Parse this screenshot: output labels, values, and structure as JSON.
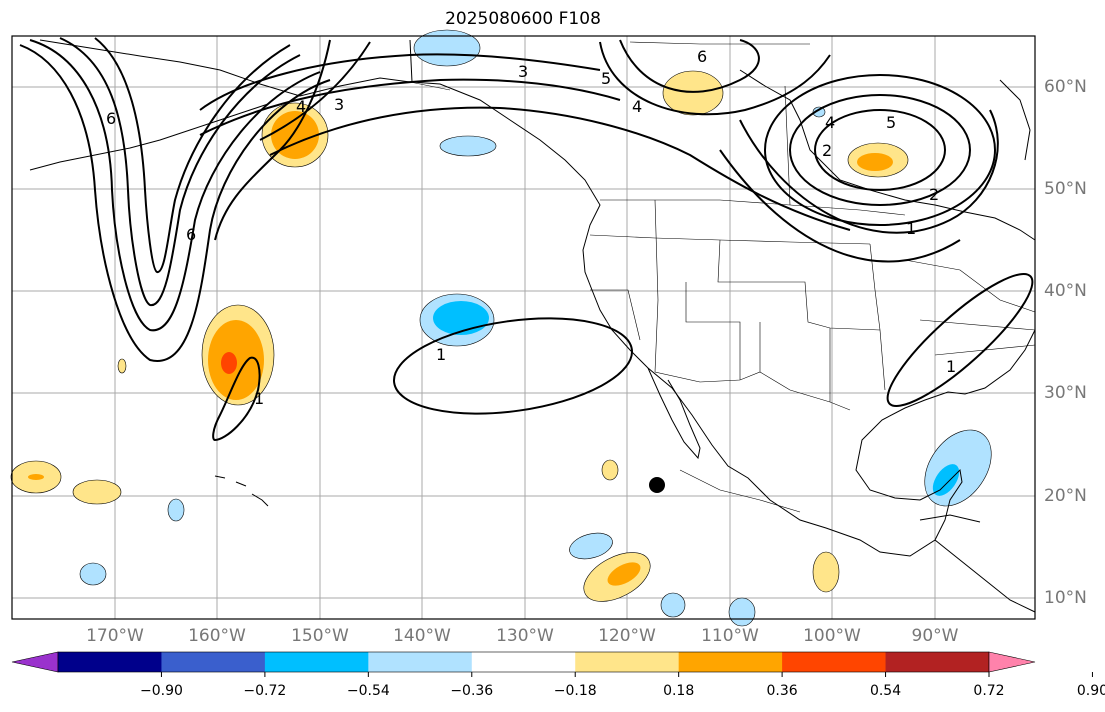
{
  "title": "2025080600 F108",
  "lat_labels": [
    "60°N",
    "50°N",
    "40°N",
    "30°N",
    "20°N",
    "10°N"
  ],
  "lon_labels": [
    "170°W",
    "160°W",
    "150°W",
    "140°W",
    "130°W",
    "120°W",
    "110°W",
    "100°W",
    "90°W"
  ],
  "contour_labels": [
    "6",
    "6",
    "4",
    "3",
    "3",
    "5",
    "6",
    "4",
    "4",
    "5",
    "2",
    "2",
    "1",
    "1",
    "1",
    "1"
  ],
  "colorbar": {
    "tick_labels": [
      "−0.90",
      "−0.72",
      "−0.54",
      "−0.36",
      "−0.18",
      "0.18",
      "0.36",
      "0.54",
      "0.72",
      "0.90"
    ],
    "colors": [
      "#9a32cd",
      "#00008b",
      "#3a5fcd",
      "#00bfff",
      "#b0e2ff",
      "#ffffff",
      "#ffe58a",
      "#ffa500",
      "#ff4500",
      "#b22222",
      "#ff82ab"
    ]
  },
  "colors": {
    "label_gray": "#777777",
    "grid": "#a0a0a0",
    "contour": "#000000"
  }
}
